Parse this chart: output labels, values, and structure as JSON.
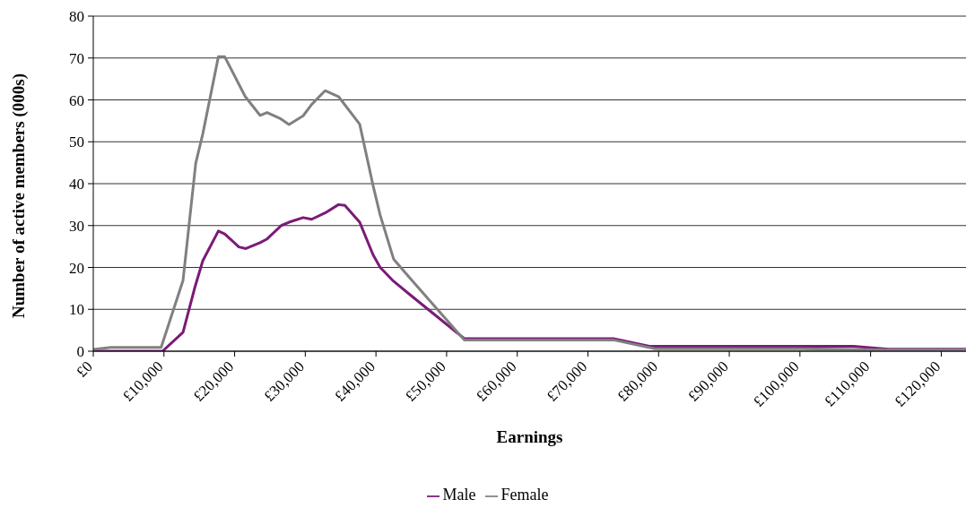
{
  "chart_data": {
    "type": "line",
    "xlabel": "Earnings",
    "ylabel": "Number of active members (000s)",
    "xlim": [
      0,
      123500
    ],
    "xticks": [
      {
        "value": 0,
        "label": "£0"
      },
      {
        "value": 10000,
        "label": "£10,000"
      },
      {
        "value": 20000,
        "label": "£20,000"
      },
      {
        "value": 30000,
        "label": "£30,000"
      },
      {
        "value": 40000,
        "label": "£40,000"
      },
      {
        "value": 50000,
        "label": "£50,000"
      },
      {
        "value": 60000,
        "label": "£60,000"
      },
      {
        "value": 70000,
        "label": "£70,000"
      },
      {
        "value": 80000,
        "label": "£80,000"
      },
      {
        "value": 90000,
        "label": "£90,000"
      },
      {
        "value": 100000,
        "label": "£100,000"
      },
      {
        "value": 110000,
        "label": "£110,000"
      },
      {
        "value": 120000,
        "label": "£120,000"
      }
    ],
    "ylim": [
      0,
      80
    ],
    "yticks": [
      0,
      10,
      20,
      30,
      40,
      50,
      60,
      70,
      80
    ],
    "grid": "y",
    "legend": "bottom",
    "marker": "none",
    "line_style": "solid",
    "series": [
      {
        "name": "Male",
        "color": "#7b1a78",
        "x": [
          0,
          9800,
          12700,
          14400,
          15500,
          17700,
          18600,
          20600,
          21600,
          23600,
          24600,
          26600,
          27700,
          29700,
          30900,
          32800,
          34700,
          35600,
          37700,
          39600,
          40600,
          42500,
          45100,
          52500,
          73600,
          78700,
          107600,
          112500,
          123500
        ],
        "values": [
          0,
          0,
          4.5,
          15.4,
          21.6,
          28.7,
          28,
          24.9,
          24.5,
          25.9,
          26.8,
          30,
          30.8,
          31.9,
          31.5,
          33,
          35,
          34.8,
          30.8,
          23,
          20,
          16.7,
          13.1,
          3,
          3,
          1.2,
          1.2,
          0.5,
          0.5
        ]
      },
      {
        "name": "Female",
        "color": "#808080",
        "x": [
          0,
          2500,
          9600,
          12700,
          14500,
          15500,
          17700,
          18600,
          21500,
          23600,
          24600,
          26400,
          27700,
          29700,
          30900,
          32800,
          34700,
          37700,
          39600,
          40600,
          42500,
          45100,
          52500,
          73600,
          79500,
          100000,
          112500,
          123500
        ],
        "values": [
          0.4,
          0.9,
          0.9,
          16.9,
          44.9,
          51.9,
          70.3,
          70.3,
          60.8,
          56.3,
          57,
          55.6,
          54.1,
          56.2,
          58.9,
          62.2,
          60.8,
          54.2,
          39.5,
          32.5,
          22,
          16.9,
          2.7,
          2.7,
          0.6,
          0.6,
          0.3,
          0.3
        ]
      }
    ]
  }
}
